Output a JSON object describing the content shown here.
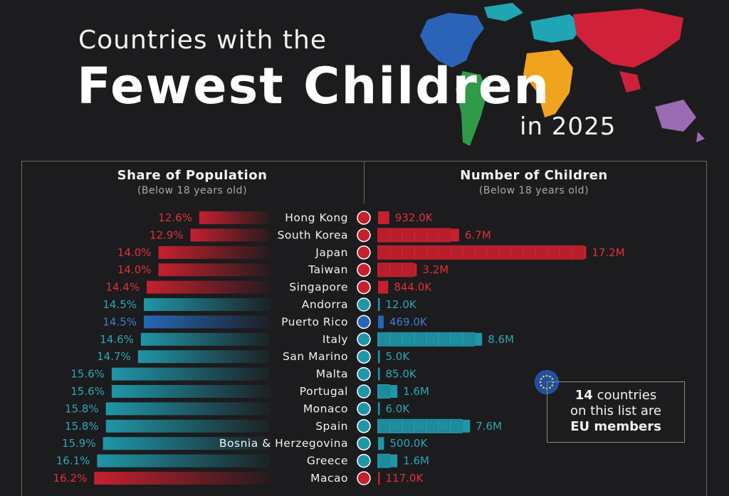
{
  "title": {
    "line1": "Countries with the",
    "line2": "Fewest Children",
    "line3": "in 2025"
  },
  "left_header": {
    "title": "Share of Population",
    "subtitle": "(Below 18 years old)"
  },
  "right_header": {
    "title": "Number of Children",
    "subtitle": "(Below 18 years old)"
  },
  "eu_note": {
    "count": "14",
    "line1_rest": " countries",
    "line2": "on this list are",
    "line3": "EU members"
  },
  "colors": {
    "red": "#c5202e",
    "teal": "#1f96a8",
    "blue": "#2468b4",
    "red_text": "#e0303c",
    "teal_text": "#2aa7b8",
    "blue_text": "#3b7fd0"
  },
  "chart_data": {
    "type": "bar",
    "categories": [
      "Hong Kong",
      "South Korea",
      "Japan",
      "Taiwan",
      "Singapore",
      "Andorra",
      "Puerto Rico",
      "Italy",
      "San Marino",
      "Malta",
      "Portugal",
      "Monaco",
      "Spain",
      "Bosnia & Herzegovina",
      "Greece",
      "Macao"
    ],
    "group": [
      "red",
      "red",
      "red",
      "red",
      "red",
      "teal",
      "blue",
      "teal",
      "teal",
      "teal",
      "teal",
      "teal",
      "teal",
      "teal",
      "teal",
      "red"
    ],
    "series": [
      {
        "name": "Share of Population",
        "values": [
          12.6,
          12.9,
          14.0,
          14.0,
          14.4,
          14.5,
          14.5,
          14.6,
          14.7,
          15.6,
          15.6,
          15.8,
          15.8,
          15.9,
          16.1,
          16.2
        ],
        "labels": [
          "12.6%",
          "12.9%",
          "14.0%",
          "14.0%",
          "14.4%",
          "14.5%",
          "14.5%",
          "14.6%",
          "14.7%",
          "15.6%",
          "15.6%",
          "15.8%",
          "15.8%",
          "15.9%",
          "16.1%",
          "16.2%"
        ]
      },
      {
        "name": "Number of Children",
        "values": [
          932000,
          6700000,
          17200000,
          3200000,
          844000,
          12000,
          469000,
          8600000,
          5000,
          85000,
          1600000,
          6000,
          7600000,
          500000,
          1600000,
          117000
        ],
        "labels": [
          "932.0K",
          "6.7M",
          "17.2M",
          "3.2M",
          "844.0K",
          "12.0K",
          "469.0K",
          "8.6M",
          "5.0K",
          "85.0K",
          "1.6M",
          "6.0K",
          "7.6M",
          "500.0K",
          "1.6M",
          "117.0K"
        ]
      }
    ],
    "flags": [
      "hong-kong-flag-icon",
      "south-korea-flag-icon",
      "japan-flag-icon",
      "taiwan-flag-icon",
      "singapore-flag-icon",
      "andorra-flag-icon",
      "puerto-rico-flag-icon",
      "italy-flag-icon",
      "san-marino-flag-icon",
      "malta-flag-icon",
      "portugal-flag-icon",
      "monaco-flag-icon",
      "spain-flag-icon",
      "bosnia-flag-icon",
      "greece-flag-icon",
      "macao-flag-icon"
    ]
  }
}
